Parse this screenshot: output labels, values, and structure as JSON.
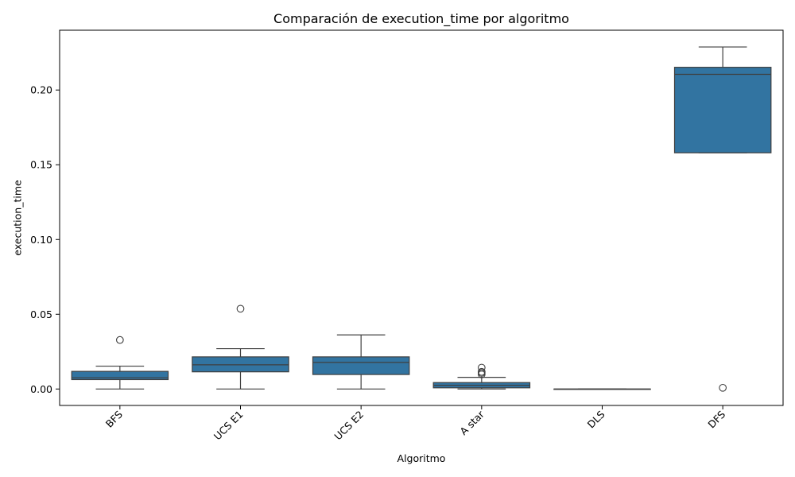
{
  "chart_data": {
    "type": "box",
    "title": "Comparación de execution_time por algoritmo",
    "xlabel": "Algoritmo",
    "ylabel": "execution_time",
    "ylim": [
      -0.011,
      0.24
    ],
    "yticks": [
      0.0,
      0.05,
      0.1,
      0.15,
      0.2
    ],
    "ytick_labels": [
      "0.00",
      "0.05",
      "0.10",
      "0.15",
      "0.20"
    ],
    "grid": false,
    "box_color": "#3274a1",
    "line_color": "#3f3f3f",
    "categories": [
      "BFS",
      "UCS E1",
      "UCS E2",
      "A star",
      "DLS",
      "DFS"
    ],
    "boxes": [
      {
        "whisker_low": 0.0,
        "q1": 0.0063,
        "median": 0.0075,
        "q3": 0.0118,
        "whisker_high": 0.0153,
        "outliers": [
          0.0328
        ]
      },
      {
        "whisker_low": 0.0,
        "q1": 0.0115,
        "median": 0.0162,
        "q3": 0.0215,
        "whisker_high": 0.027,
        "outliers": [
          0.0537
        ]
      },
      {
        "whisker_low": 0.0,
        "q1": 0.0097,
        "median": 0.0178,
        "q3": 0.0215,
        "whisker_high": 0.0362,
        "outliers": []
      },
      {
        "whisker_low": 0.0,
        "q1": 0.0008,
        "median": 0.0025,
        "q3": 0.0043,
        "whisker_high": 0.0078,
        "outliers": [
          0.0098,
          0.0108,
          0.0115,
          0.0143
        ]
      },
      {
        "whisker_low": 0.0,
        "q1": 0.0,
        "median": 0.0,
        "q3": 0.0,
        "whisker_high": 0.0,
        "outliers": []
      },
      {
        "whisker_low": 0.158,
        "q1": 0.158,
        "median": 0.2105,
        "q3": 0.2152,
        "whisker_high": 0.2288,
        "outliers": [
          0.0008
        ]
      }
    ]
  }
}
